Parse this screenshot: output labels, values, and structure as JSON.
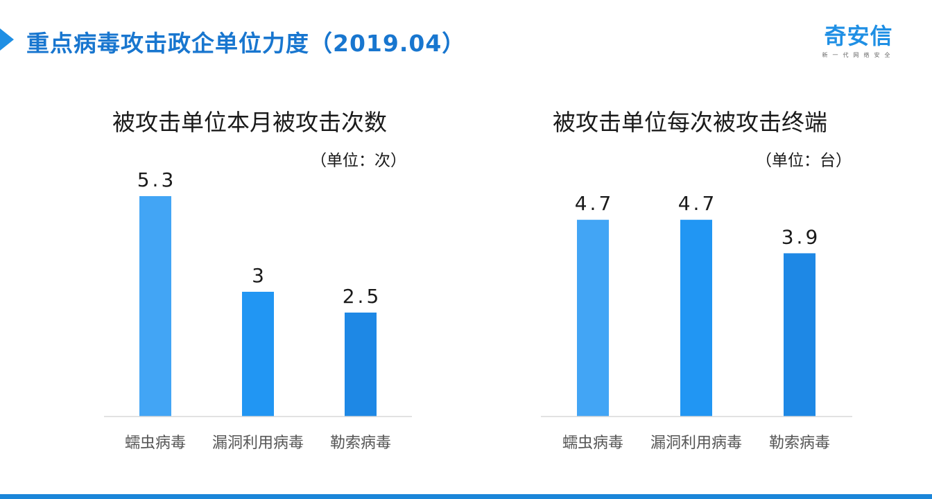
{
  "page": {
    "title": "重点病毒攻击政企单位力度（2019.04）",
    "logo_main": "奇安信",
    "logo_sub": "新一代网络安全"
  },
  "chart_data": [
    {
      "type": "bar",
      "title": "被攻击单位本月被攻击次数",
      "unit": "（单位：次）",
      "categories": [
        "蠕虫病毒",
        "漏洞利用病毒",
        "勒索病毒"
      ],
      "values": [
        5.3,
        3,
        2.5
      ],
      "value_labels": [
        "5.3",
        "3",
        "2.5"
      ],
      "colors": [
        "#42a5f5",
        "#2196f3",
        "#1e88e5"
      ],
      "ylim": [
        0,
        6
      ],
      "grid": false
    },
    {
      "type": "bar",
      "title": "被攻击单位每次被攻击终端",
      "unit": "（单位：台）",
      "categories": [
        "蠕虫病毒",
        "漏洞利用病毒",
        "勒索病毒"
      ],
      "values": [
        4.7,
        4.7,
        3.9
      ],
      "value_labels": [
        "4.7",
        "4.7",
        "3.9"
      ],
      "colors": [
        "#42a5f5",
        "#2196f3",
        "#1e88e5"
      ],
      "ylim": [
        0,
        6
      ],
      "grid": false
    }
  ]
}
